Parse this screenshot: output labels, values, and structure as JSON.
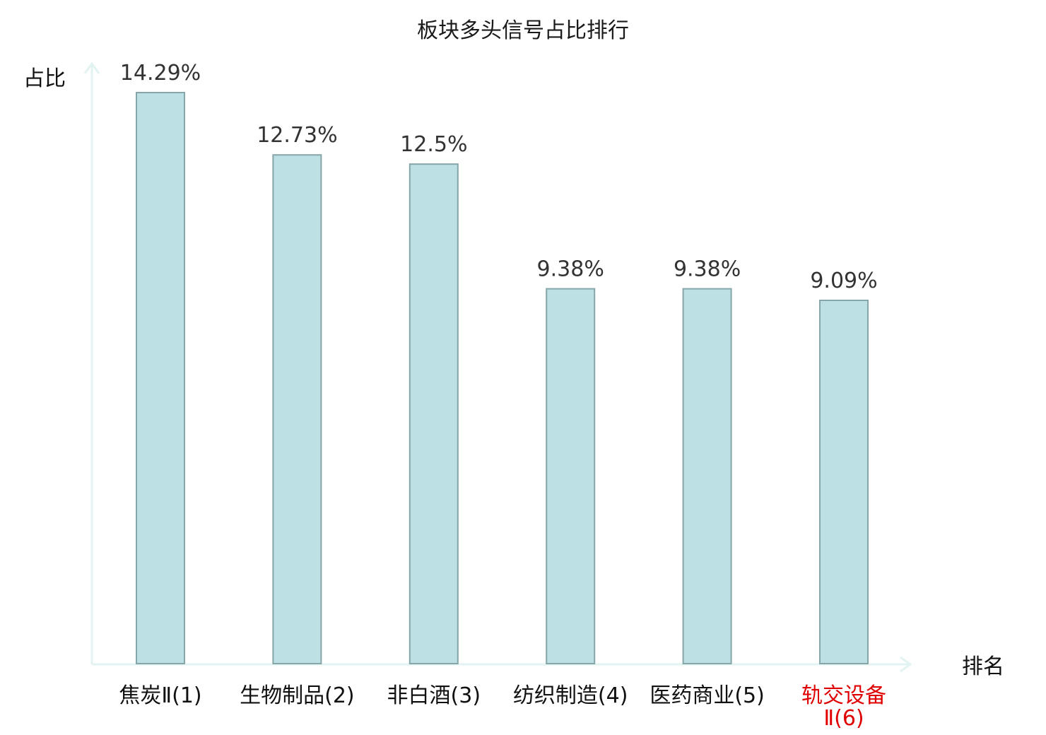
{
  "chart_data": {
    "type": "bar",
    "title": "板块多头信号占比排行",
    "ylabel": "占比",
    "xlabel": "排名",
    "categories": [
      "焦炭Ⅱ(1)",
      "生物制品(2)",
      "非白酒(3)",
      "纺织制造(4)",
      "医药商业(5)",
      "轨交设备Ⅱ(6)"
    ],
    "category_lines": [
      [
        "焦炭Ⅱ(1)"
      ],
      [
        "生物制品(2)"
      ],
      [
        "非白酒(3)"
      ],
      [
        "纺织制造(4)"
      ],
      [
        "医药商业(5)"
      ],
      [
        "轨交设备",
        "Ⅱ(6)"
      ]
    ],
    "values": [
      14.29,
      12.73,
      12.5,
      9.38,
      9.38,
      9.09
    ],
    "value_labels": [
      "14.29%",
      "12.73%",
      "12.5%",
      "9.38%",
      "9.38%",
      "9.09%"
    ],
    "highlight_index": 5,
    "ylim": [
      0,
      14.29
    ],
    "grid": false,
    "colors": {
      "bar_fill": "#bce0e3",
      "bar_stroke": "#86a6a9",
      "axis": "#e2f3f1",
      "highlight_label": "#e00000"
    }
  }
}
